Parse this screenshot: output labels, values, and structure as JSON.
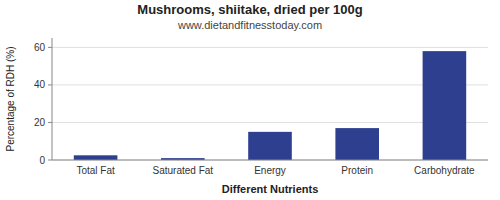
{
  "chart_data": {
    "type": "bar",
    "title": "Mushrooms, shiitake, dried per 100g",
    "subtitle": "www.dietandfitnesstoday.com",
    "xlabel": "Different Nutrients",
    "ylabel": "Percentage of RDH (%)",
    "categories": [
      "Total Fat",
      "Saturated Fat",
      "Energy",
      "Protein",
      "Carbohydrate"
    ],
    "values": [
      2.5,
      1.0,
      15.0,
      17.0,
      58.0
    ],
    "color": "#2e3f8f",
    "ylim": [
      0,
      65
    ],
    "yticks": [
      0,
      20,
      40,
      60
    ],
    "grid": true
  }
}
